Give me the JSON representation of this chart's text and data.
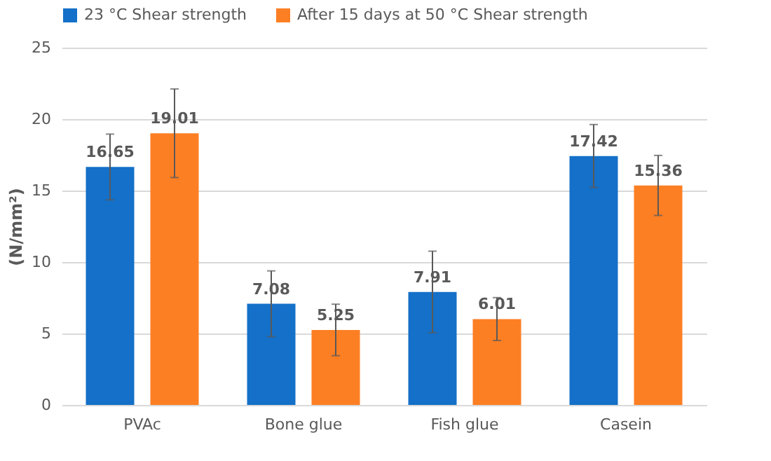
{
  "chart_data": {
    "type": "bar",
    "ylabel": "(N/mm²)",
    "categories": [
      "PVAc",
      "Bone glue",
      "Fish glue",
      "Casein"
    ],
    "series": [
      {
        "name": "23 °C Shear strength",
        "color": "#1470c8",
        "values": [
          16.65,
          7.08,
          7.91,
          17.42
        ],
        "errors": [
          2.3,
          2.3,
          2.85,
          2.2
        ]
      },
      {
        "name": "After 15 days at 50 °C Shear strength",
        "color": "#fd7f24",
        "values": [
          19.01,
          5.25,
          6.01,
          15.36
        ],
        "errors": [
          3.1,
          1.8,
          1.5,
          2.1
        ]
      }
    ],
    "ylim": [
      0,
      25
    ],
    "yticks": [
      0,
      5,
      10,
      15,
      20,
      25
    ],
    "grid": "y",
    "legend": "top",
    "data_labels": true
  }
}
